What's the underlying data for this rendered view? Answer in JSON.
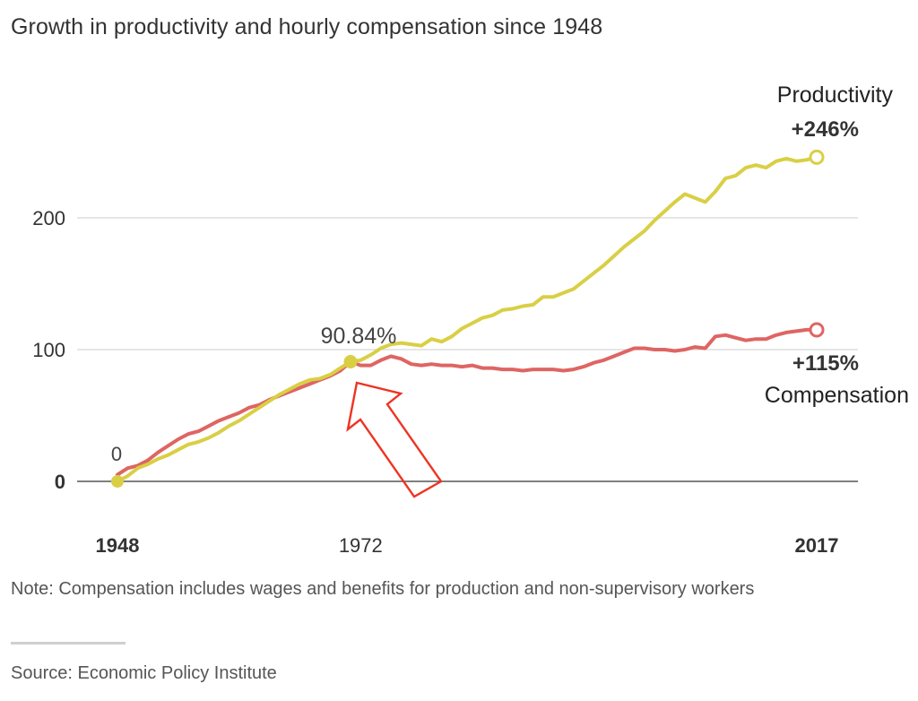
{
  "chart_data": {
    "type": "line",
    "title": "Growth in productivity and hourly compensation since 1948",
    "xlim": [
      1948,
      2017
    ],
    "ylim": [
      0,
      270
    ],
    "y_ticks": [
      {
        "value": 0,
        "label": "0"
      },
      {
        "value": 100,
        "label": "100"
      },
      {
        "value": 200,
        "label": "200"
      }
    ],
    "x_ticks": [
      {
        "value": 1948,
        "label": "1948"
      },
      {
        "value": 1972,
        "label": "1972"
      },
      {
        "value": 2017,
        "label": "2017"
      }
    ],
    "grid": true,
    "series": [
      {
        "name": "Productivity",
        "color": "#d9cf45",
        "end_label": "+246%",
        "x": [
          1948,
          1949,
          1950,
          1951,
          1952,
          1953,
          1954,
          1955,
          1956,
          1957,
          1958,
          1959,
          1960,
          1961,
          1962,
          1963,
          1964,
          1965,
          1966,
          1967,
          1968,
          1969,
          1970,
          1971,
          1972,
          1973,
          1974,
          1975,
          1976,
          1977,
          1978,
          1979,
          1980,
          1981,
          1982,
          1983,
          1984,
          1985,
          1986,
          1987,
          1988,
          1989,
          1990,
          1991,
          1992,
          1993,
          1994,
          1995,
          1996,
          1997,
          1998,
          1999,
          2000,
          2001,
          2002,
          2003,
          2004,
          2005,
          2006,
          2007,
          2008,
          2009,
          2010,
          2011,
          2012,
          2013,
          2014,
          2015,
          2016,
          2017
        ],
        "values": [
          0,
          4,
          10,
          13,
          17,
          20,
          24,
          28,
          30,
          33,
          37,
          42,
          46,
          51,
          56,
          61,
          66,
          70,
          74,
          77,
          78,
          81,
          86,
          90.8,
          92,
          96,
          101,
          104,
          105,
          104,
          103,
          108,
          106,
          110,
          116,
          120,
          124,
          126,
          130,
          131,
          133,
          134,
          140,
          140,
          143,
          146,
          152,
          158,
          164,
          171,
          178,
          184,
          190,
          198,
          205,
          212,
          218,
          215,
          212,
          220,
          230,
          232,
          238,
          240,
          238,
          243,
          245,
          243,
          244,
          246
        ]
      },
      {
        "name": "Compensation",
        "color": "#de6563",
        "end_label": "+115%",
        "x": [
          1948,
          1949,
          1950,
          1951,
          1952,
          1953,
          1954,
          1955,
          1956,
          1957,
          1958,
          1959,
          1960,
          1961,
          1962,
          1963,
          1964,
          1965,
          1966,
          1967,
          1968,
          1969,
          1970,
          1971,
          1972,
          1973,
          1974,
          1975,
          1976,
          1977,
          1978,
          1979,
          1980,
          1981,
          1982,
          1983,
          1984,
          1985,
          1986,
          1987,
          1988,
          1989,
          1990,
          1991,
          1992,
          1993,
          1994,
          1995,
          1996,
          1997,
          1998,
          1999,
          2000,
          2001,
          2002,
          2003,
          2004,
          2005,
          2006,
          2007,
          2008,
          2009,
          2010,
          2011,
          2012,
          2013,
          2014,
          2015,
          2016,
          2017
        ],
        "values": [
          5,
          10,
          12,
          16,
          22,
          27,
          32,
          36,
          38,
          42,
          46,
          49,
          52,
          56,
          58,
          62,
          65,
          68,
          71,
          74,
          77,
          80,
          84,
          90.8,
          88,
          88,
          92,
          95,
          93,
          89,
          88,
          89,
          88,
          88,
          87,
          88,
          86,
          86,
          85,
          85,
          84,
          85,
          85,
          85,
          84,
          85,
          87,
          90,
          92,
          95,
          98,
          101,
          101,
          100,
          100,
          99,
          100,
          102,
          101,
          110,
          111,
          109,
          107,
          108,
          108,
          111,
          113,
          114,
          115,
          115
        ]
      }
    ],
    "annotations": {
      "start_label": "0",
      "mid_label": "90.84%",
      "productivity_name": "Productivity",
      "productivity_value": "+246%",
      "compensation_name": "Compensation",
      "compensation_value": "+115%"
    }
  },
  "note": "Note: Compensation includes wages and benefits for production and non-supervisory workers",
  "source": "Source: Economic Policy Institute"
}
